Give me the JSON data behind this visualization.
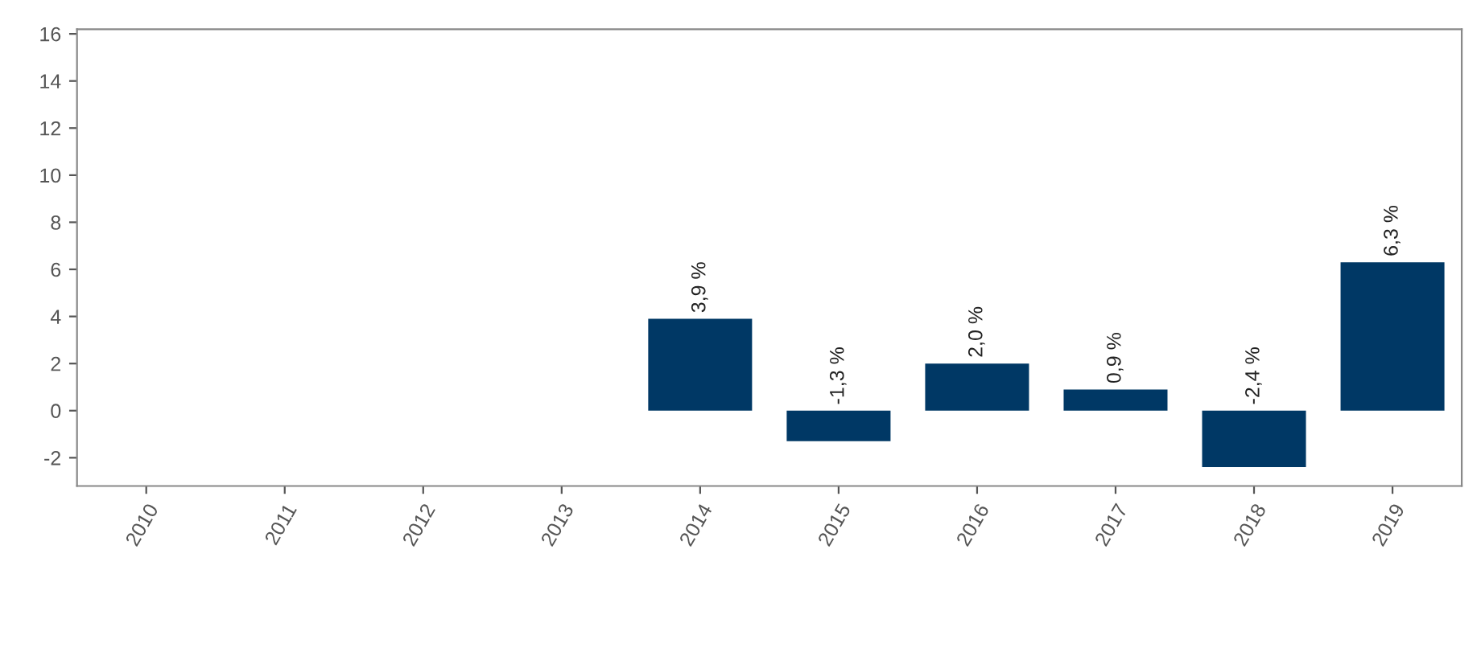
{
  "chart_data": {
    "type": "bar",
    "categories": [
      "2010",
      "2011",
      "2012",
      "2013",
      "2014",
      "2015",
      "2016",
      "2017",
      "2018",
      "2019"
    ],
    "series": [
      {
        "color": "#003865",
        "values": [
          null,
          null,
          null,
          null,
          3.9,
          -1.3,
          2.0,
          0.9,
          -2.4,
          6.3
        ],
        "value_labels": [
          null,
          null,
          null,
          null,
          "3,9 %",
          "-1,3 %",
          "2,0 %",
          "0,9 %",
          "-2,4 %",
          "6,3 %"
        ]
      }
    ],
    "ylim": [
      -3.2,
      16.2
    ],
    "yticks": [
      -2,
      0,
      2,
      4,
      6,
      8,
      10,
      12,
      14,
      16
    ],
    "grid": false
  }
}
